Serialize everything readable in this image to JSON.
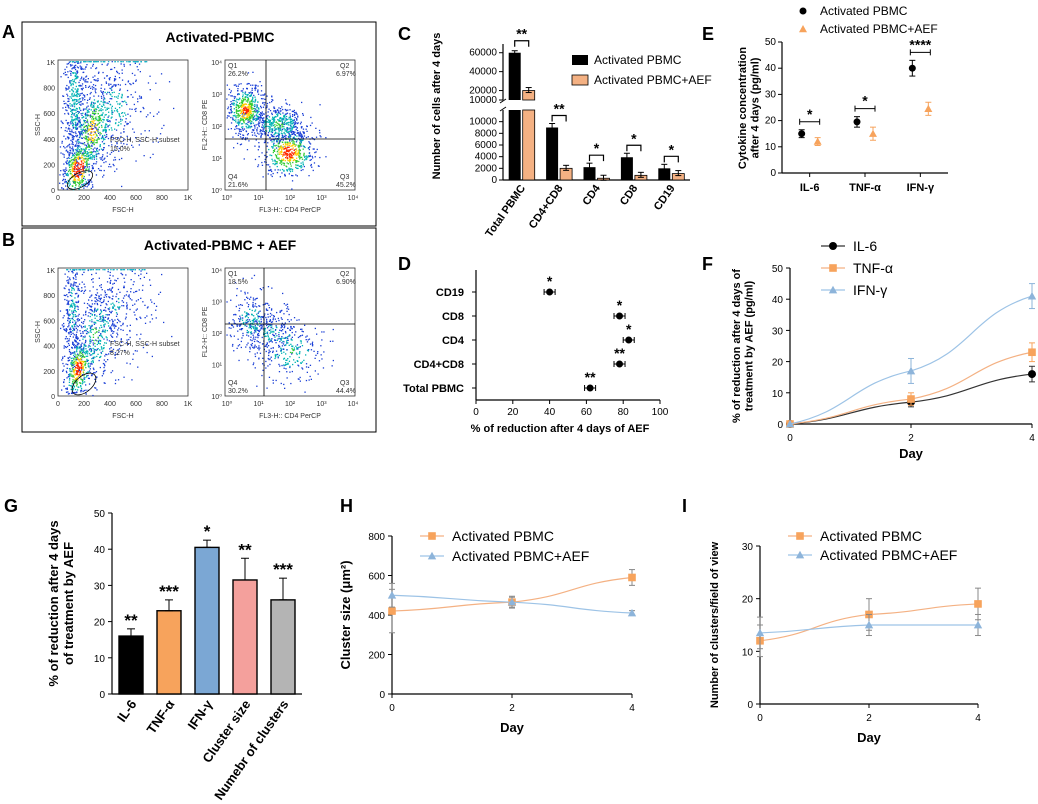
{
  "colors": {
    "black": "#000000",
    "orange": "#f4b183",
    "orange_marker": "#f7a35c",
    "blue": "#9dc3e6",
    "blue_marker": "#8db4da",
    "blue_bar": "#7ba7d4",
    "red_bar": "#f4a09c",
    "gray_bar": "#b4b4b4",
    "line_dark": "#333333"
  },
  "panels": {
    "A": {
      "label": "A",
      "title": "Activated-PBMC",
      "scatter": {
        "ylabel": "SSC-H",
        "xlabel": "FSC-H",
        "yticks": [
          "1K",
          "800",
          "600",
          "400",
          "200",
          "0"
        ],
        "xticks": [
          "0",
          "200",
          "400",
          "600",
          "800",
          "1K"
        ],
        "gate_text": "FSC-H, SSC-H subset",
        "gate_pct": "15.0%"
      },
      "quadrant": {
        "ylabel": "FL2-H:: CD8 PE",
        "xlabel": "FL3-H:: CD4 PerCP",
        "q1": "Q1",
        "q1_pct": "26.2%",
        "q2": "Q2",
        "q2_pct": "6.97%",
        "q3": "Q3",
        "q3_pct": "45.2%",
        "q4": "Q4",
        "q4_pct": "21.6%"
      }
    },
    "B": {
      "label": "B",
      "title": "Activated-PBMC + AEF",
      "scatter": {
        "ylabel": "SSC-H",
        "xlabel": "FSC-H",
        "yticks": [
          "1K",
          "800",
          "600",
          "400",
          "200",
          "0"
        ],
        "xticks": [
          "0",
          "200",
          "400",
          "600",
          "800",
          "1K"
        ],
        "gate_text": "FSC-H, SSC-H subset",
        "gate_pct": "8.27%"
      },
      "quadrant": {
        "ylabel": "FL2-H:: CD8 PE",
        "xlabel": "FL3-H:: CD4 PerCP",
        "q1": "Q1",
        "q1_pct": "18.5%",
        "q2": "Q2",
        "q2_pct": "6.90%",
        "q3": "Q3",
        "q3_pct": "44.4%",
        "q4": "Q4",
        "q4_pct": "30.2%"
      }
    },
    "quad_ticks": {
      "y": [
        "10⁴",
        "10³",
        "10²",
        "10¹",
        "10⁰"
      ],
      "x": [
        "10⁰",
        "10¹",
        "10²",
        "10³",
        "10⁴"
      ]
    },
    "C": {
      "label": "C"
    },
    "D": {
      "label": "D"
    },
    "E": {
      "label": "E"
    },
    "F": {
      "label": "F"
    },
    "G": {
      "label": "G"
    },
    "H": {
      "label": "H"
    },
    "I": {
      "label": "I"
    }
  },
  "chart_data": [
    {
      "id": "C",
      "type": "bar",
      "ylabel": "Number of cells after 4 days",
      "categories": [
        "Total PBMC",
        "CD4+CD8",
        "CD4",
        "CD8",
        "CD19"
      ],
      "series": [
        {
          "name": "Activated PBMC",
          "values": [
            60000,
            9000,
            2200,
            3900,
            2000
          ]
        },
        {
          "name": "Activated PBMC+AEF",
          "values": [
            20000,
            2000,
            300,
            800,
            1100
          ]
        }
      ],
      "axis_break": true,
      "yticks_upper": [
        "60000",
        "40000",
        "20000",
        "10000"
      ],
      "yticks_lower": [
        "10000",
        "8000",
        "6000",
        "4000",
        "2000",
        "0"
      ],
      "significance": [
        "**",
        "**",
        "*",
        "*",
        "*"
      ],
      "legend": [
        "Activated PBMC",
        "Activated PBMC+AEF"
      ]
    },
    {
      "id": "D",
      "type": "scatter",
      "xlabel": "% of reduction after 4 days of AEF",
      "categories": [
        "CD19",
        "CD8",
        "CD4",
        "CD4+CD8",
        "Total PBMC"
      ],
      "values": [
        40,
        78,
        83,
        78,
        62
      ],
      "errors": [
        3,
        3,
        3,
        3,
        3
      ],
      "significance": [
        "*",
        "*",
        "*",
        "**",
        "**"
      ],
      "xlim": [
        0,
        100
      ],
      "xticks": [
        "0",
        "20",
        "40",
        "60",
        "80",
        "100"
      ]
    },
    {
      "id": "E",
      "type": "scatter",
      "ylabel": "Cytokine concentration after 4 days (pg/ml)",
      "categories": [
        "IL-6",
        "TNF-α",
        "IFN-γ"
      ],
      "series": [
        {
          "name": "Activated PBMC",
          "values": [
            15,
            19.5,
            40
          ],
          "errors": [
            1.5,
            2,
            3
          ]
        },
        {
          "name": "Activated PBMC+AEF",
          "values": [
            12,
            15,
            24.5
          ],
          "errors": [
            1.5,
            2.5,
            2.5
          ]
        }
      ],
      "ylim": [
        0,
        50
      ],
      "yticks": [
        "0",
        "10",
        "20",
        "30",
        "40",
        "50"
      ],
      "significance": [
        "*",
        "*",
        "****"
      ],
      "legend": [
        "Activated PBMC",
        "Activated PBMC+AEF"
      ]
    },
    {
      "id": "F",
      "type": "line",
      "ylabel": "% of reduction after 4 days of treatment by AEF (pg/ml)",
      "xlabel": "Day",
      "x": [
        0,
        2,
        4
      ],
      "series": [
        {
          "name": "IL-6",
          "values": [
            0,
            7,
            16
          ],
          "errors": [
            0,
            1.5,
            2.5
          ]
        },
        {
          "name": "TNF-α",
          "values": [
            0,
            8,
            23
          ],
          "errors": [
            0,
            2,
            3
          ]
        },
        {
          "name": "IFN-γ",
          "values": [
            0,
            17,
            41
          ],
          "errors": [
            0,
            4,
            4
          ]
        }
      ],
      "ylim": [
        0,
        50
      ],
      "yticks": [
        "0",
        "10",
        "20",
        "30",
        "40",
        "50"
      ],
      "xticks": [
        "0",
        "2",
        "4"
      ],
      "legend": [
        "IL-6",
        "TNF-α",
        "IFN-γ"
      ]
    },
    {
      "id": "G",
      "type": "bar",
      "ylabel": "% of reduction after 4 days of treatment by AEF",
      "categories": [
        "IL-6",
        "TNF-α",
        "IFN-γ",
        "Cluster size",
        "Numebr of clusters"
      ],
      "values": [
        16,
        23,
        40.5,
        31.5,
        26
      ],
      "errors": [
        2,
        3,
        2,
        6,
        6
      ],
      "significance": [
        "**",
        "***",
        "*",
        "**",
        "***"
      ],
      "ylim": [
        0,
        50
      ],
      "yticks": [
        "0",
        "10",
        "20",
        "30",
        "40",
        "50"
      ]
    },
    {
      "id": "H",
      "type": "line",
      "ylabel": "Cluster size (μm²)",
      "xlabel": "Day",
      "x": [
        0,
        2,
        4
      ],
      "series": [
        {
          "name": "Activated PBMC",
          "values": [
            420,
            465,
            590
          ],
          "errors": [
            110,
            30,
            40
          ]
        },
        {
          "name": "Activated PBMC+AEF",
          "values": [
            500,
            465,
            410
          ],
          "errors": [
            60,
            25,
            12
          ]
        }
      ],
      "ylim": [
        0,
        800
      ],
      "yticks": [
        "0",
        "200",
        "400",
        "600",
        "800"
      ],
      "xticks": [
        "0",
        "2",
        "4"
      ],
      "legend": [
        "Activated PBMC",
        "Activated PBMC+AEF"
      ]
    },
    {
      "id": "I",
      "type": "line",
      "ylabel": "Number of clusters/field of view",
      "xlabel": "Day",
      "x": [
        0,
        2,
        4
      ],
      "series": [
        {
          "name": "Activated PBMC",
          "values": [
            12,
            17,
            19
          ],
          "errors": [
            3,
            3,
            3
          ]
        },
        {
          "name": "Activated PBMC+AEF",
          "values": [
            13.5,
            15,
            15
          ],
          "errors": [
            3,
            2,
            2
          ]
        }
      ],
      "ylim": [
        0,
        30
      ],
      "yticks": [
        "0",
        "10",
        "20",
        "30"
      ],
      "xticks": [
        "0",
        "2",
        "4"
      ],
      "legend": [
        "Activated PBMC",
        "Activated PBMC+AEF"
      ]
    }
  ]
}
